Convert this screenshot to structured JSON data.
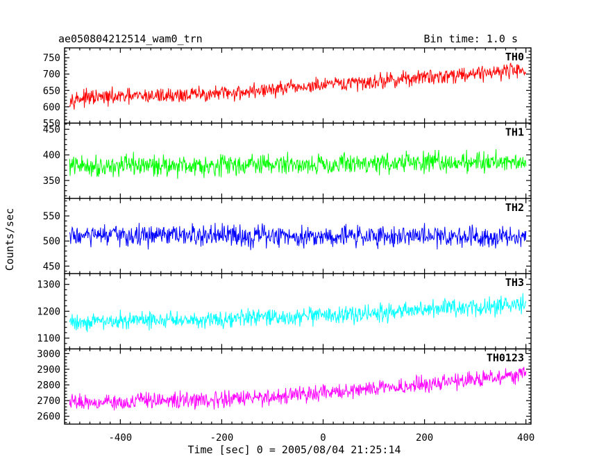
{
  "header": {
    "title": "ae050804212514_wam0_trn",
    "bin_time": "Bin time: 1.0 s"
  },
  "chart_data": {
    "type": "line",
    "xlabel": "Time [sec] 0 = 2005/08/04 21:25:14",
    "ylabel": "Counts/sec",
    "xlim": [
      -510,
      410
    ],
    "xticks": [
      -400,
      -200,
      0,
      200,
      400
    ],
    "x_minor_step": 20,
    "x_step": 1,
    "x_start": -500,
    "x_end": 400,
    "panels": [
      {
        "name": "TH0",
        "color": "#ff0000",
        "ylim": [
          550,
          780
        ],
        "yticks": [
          550,
          600,
          650,
          700,
          750
        ],
        "trend": [
          [
            -500,
            625
          ],
          [
            -200,
            640
          ],
          [
            0,
            665
          ],
          [
            200,
            690
          ],
          [
            400,
            715
          ]
        ],
        "noise_amplitude": 35
      },
      {
        "name": "TH1",
        "color": "#00ff00",
        "ylim": [
          315,
          462
        ],
        "yticks": [
          350,
          400,
          450
        ],
        "trend": [
          [
            -500,
            378
          ],
          [
            0,
            382
          ],
          [
            400,
            388
          ]
        ],
        "noise_amplitude": 30
      },
      {
        "name": "TH2",
        "color": "#0000ff",
        "ylim": [
          435,
          585
        ],
        "yticks": [
          450,
          500,
          550
        ],
        "trend": [
          [
            -500,
            510
          ],
          [
            400,
            510
          ]
        ],
        "noise_amplitude": 32
      },
      {
        "name": "TH3",
        "color": "#00ffff",
        "ylim": [
          1060,
          1340
        ],
        "yticks": [
          1100,
          1200,
          1300
        ],
        "trend": [
          [
            -500,
            1160
          ],
          [
            0,
            1180
          ],
          [
            200,
            1205
          ],
          [
            400,
            1225
          ]
        ],
        "noise_amplitude": 48
      },
      {
        "name": "TH0123",
        "color": "#ff00ff",
        "ylim": [
          2550,
          3030
        ],
        "yticks": [
          2600,
          2700,
          2800,
          2900,
          3000
        ],
        "trend": [
          [
            -500,
            2690
          ],
          [
            -200,
            2705
          ],
          [
            0,
            2745
          ],
          [
            200,
            2805
          ],
          [
            400,
            2870
          ]
        ],
        "noise_amplitude": 75
      }
    ]
  }
}
